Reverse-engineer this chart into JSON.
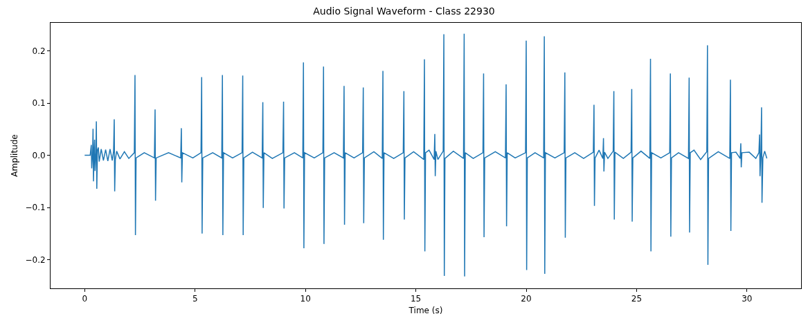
{
  "chart_data": {
    "type": "line",
    "title": "Audio Signal Waveform - Class 22930",
    "xlabel": "Time (s)",
    "ylabel": "Amplitude",
    "xlim": [
      -1.545,
      32.45
    ],
    "xticks": [
      0,
      5,
      10,
      15,
      20,
      25,
      30
    ],
    "ylim": [
      -0.255,
      0.254
    ],
    "yticks": [
      {
        "value": -0.2,
        "label": "−0.2"
      },
      {
        "value": -0.1,
        "label": "−0.1"
      },
      {
        "value": 0,
        "label": "0.0"
      },
      {
        "value": 0.1,
        "label": "0.1"
      },
      {
        "value": 0.2,
        "label": "0.2"
      }
    ],
    "marker": "none",
    "line_style": "solid",
    "series": [
      {
        "color": "#1f77b4",
        "x": [
          0,
          0.25,
          0.3,
          0.32,
          0.36,
          0.38,
          0.4,
          0.43,
          0.45,
          0.47,
          0.51,
          0.53,
          0.55,
          0.58,
          0.62,
          0.66,
          0.75,
          0.85,
          0.95,
          1.05,
          1.15,
          1.25,
          1.31,
          1.34,
          1.36,
          1.39,
          1.45,
          1.6,
          1.8,
          2.0,
          2.25,
          2.28,
          2.3,
          2.33,
          2.7,
          3.16,
          3.19,
          3.21,
          3.24,
          3.8,
          4.35,
          4.38,
          4.4,
          4.43,
          4.9,
          5.27,
          5.3,
          5.32,
          5.35,
          5.8,
          6.21,
          6.24,
          6.26,
          6.29,
          6.7,
          7.13,
          7.16,
          7.18,
          7.21,
          7.6,
          8.04,
          8.07,
          8.09,
          8.12,
          8.5,
          8.98,
          9.01,
          9.03,
          9.06,
          9.5,
          9.88,
          9.91,
          9.93,
          9.96,
          10.4,
          10.79,
          10.82,
          10.84,
          10.87,
          11.3,
          11.72,
          11.75,
          11.77,
          11.8,
          12.2,
          12.59,
          12.62,
          12.64,
          12.67,
          13.1,
          13.48,
          13.51,
          13.53,
          13.56,
          14.0,
          14.43,
          14.46,
          14.48,
          14.51,
          14.9,
          15.36,
          15.39,
          15.41,
          15.44,
          15.6,
          15.83,
          15.86,
          15.88,
          15.91,
          16.0,
          16.24,
          16.27,
          16.29,
          16.32,
          16.7,
          17.16,
          17.19,
          17.21,
          17.24,
          17.6,
          18.04,
          18.07,
          18.09,
          18.12,
          18.6,
          19.06,
          19.09,
          19.11,
          19.14,
          19.5,
          19.97,
          20.0,
          20.02,
          20.05,
          20.4,
          20.79,
          20.82,
          20.84,
          20.87,
          21.3,
          21.72,
          21.75,
          21.77,
          21.8,
          22.2,
          22.6,
          23.04,
          23.07,
          23.09,
          23.12,
          23.3,
          23.47,
          23.5,
          23.52,
          23.55,
          23.7,
          23.94,
          23.97,
          23.99,
          24.02,
          24.4,
          24.75,
          24.78,
          24.8,
          24.83,
          25.2,
          25.6,
          25.63,
          25.65,
          25.68,
          26.1,
          26.5,
          26.53,
          26.55,
          26.58,
          26.9,
          27.35,
          27.38,
          27.4,
          27.43,
          27.6,
          27.9,
          28.18,
          28.21,
          28.23,
          28.26,
          28.7,
          29.22,
          29.25,
          29.27,
          29.3,
          29.5,
          29.69,
          29.72,
          29.74,
          29.77,
          30.1,
          30.4,
          30.54,
          30.57,
          30.59,
          30.63,
          30.66,
          30.68,
          30.72,
          30.8,
          30.9
        ],
        "values": [
          0,
          0,
          0.02,
          -0.025,
          0.004,
          0.051,
          -0.05,
          0.01,
          0.03,
          -0.03,
          0.005,
          0.065,
          -0.064,
          0.01,
          0.015,
          -0.012,
          0.012,
          -0.01,
          0.011,
          -0.011,
          0.012,
          -0.01,
          0.008,
          0.069,
          -0.069,
          -0.008,
          0.008,
          -0.007,
          0.007,
          -0.006,
          0.005,
          0.154,
          -0.153,
          -0.005,
          0.005,
          -0.005,
          0.088,
          -0.087,
          -0.005,
          0.005,
          -0.005,
          0.052,
          -0.052,
          0.005,
          -0.005,
          0.005,
          0.15,
          -0.15,
          -0.005,
          0.005,
          -0.005,
          0.154,
          -0.153,
          0.005,
          -0.005,
          0.005,
          0.153,
          -0.153,
          -0.005,
          0.006,
          -0.005,
          0.102,
          -0.101,
          0.005,
          -0.006,
          0.005,
          0.103,
          -0.102,
          -0.005,
          0.005,
          -0.005,
          0.178,
          -0.178,
          0.005,
          -0.005,
          0.005,
          0.17,
          -0.17,
          -0.005,
          0.005,
          -0.005,
          0.133,
          -0.133,
          0.005,
          -0.005,
          0.005,
          0.13,
          -0.13,
          -0.005,
          0.007,
          -0.006,
          0.162,
          -0.162,
          0.005,
          -0.006,
          0.005,
          0.123,
          -0.123,
          -0.005,
          0.007,
          -0.008,
          0.184,
          -0.184,
          0.005,
          0.01,
          -0.008,
          0.041,
          -0.04,
          0.008,
          -0.008,
          0.008,
          0.232,
          -0.231,
          -0.006,
          0.008,
          -0.006,
          0.233,
          -0.232,
          0.005,
          -0.006,
          0.005,
          0.157,
          -0.157,
          -0.005,
          0.007,
          -0.005,
          0.136,
          -0.136,
          0.005,
          -0.005,
          0.005,
          0.22,
          -0.22,
          -0.005,
          0.005,
          -0.005,
          0.228,
          -0.227,
          0.005,
          -0.005,
          0.005,
          0.159,
          -0.158,
          -0.005,
          0.005,
          -0.006,
          0.006,
          0.097,
          -0.097,
          -0.005,
          0.01,
          -0.006,
          0.033,
          -0.031,
          0.006,
          -0.006,
          0.008,
          0.123,
          -0.123,
          0.006,
          -0.006,
          0.006,
          0.127,
          -0.127,
          -0.005,
          0.008,
          -0.006,
          0.185,
          -0.184,
          0.005,
          -0.005,
          0.005,
          0.157,
          -0.156,
          -0.005,
          0.005,
          -0.006,
          0.149,
          -0.148,
          0.005,
          0.01,
          -0.008,
          0.007,
          0.211,
          -0.21,
          -0.006,
          0.007,
          -0.006,
          0.145,
          -0.145,
          0.005,
          0.006,
          -0.006,
          0.023,
          -0.023,
          0.005,
          0.006,
          -0.006,
          0.005,
          0.04,
          -0.04,
          0.006,
          0.092,
          -0.091,
          -0.005,
          0.008,
          -0.006
        ]
      }
    ]
  }
}
